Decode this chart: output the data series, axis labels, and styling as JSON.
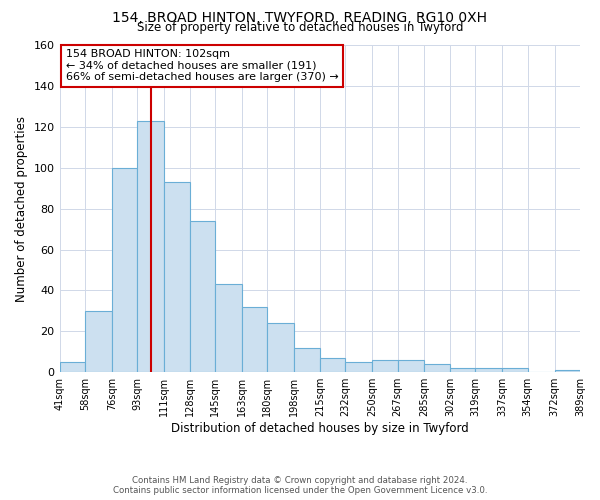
{
  "title": "154, BROAD HINTON, TWYFORD, READING, RG10 0XH",
  "subtitle": "Size of property relative to detached houses in Twyford",
  "xlabel": "Distribution of detached houses by size in Twyford",
  "ylabel": "Number of detached properties",
  "bar_edges": [
    41,
    58,
    76,
    93,
    111,
    128,
    145,
    163,
    180,
    198,
    215,
    232,
    250,
    267,
    285,
    302,
    319,
    337,
    354,
    372,
    389
  ],
  "bar_heights": [
    5,
    30,
    100,
    123,
    93,
    74,
    43,
    32,
    24,
    12,
    7,
    5,
    6,
    6,
    4,
    2,
    2,
    2,
    0,
    1
  ],
  "tick_labels": [
    "41sqm",
    "58sqm",
    "76sqm",
    "93sqm",
    "111sqm",
    "128sqm",
    "145sqm",
    "163sqm",
    "180sqm",
    "198sqm",
    "215sqm",
    "232sqm",
    "250sqm",
    "267sqm",
    "285sqm",
    "302sqm",
    "319sqm",
    "337sqm",
    "354sqm",
    "372sqm",
    "389sqm"
  ],
  "bar_color": "#cce0f0",
  "bar_edge_color": "#6aaed6",
  "reference_line_x": 102,
  "reference_line_color": "#cc0000",
  "ylim": [
    0,
    160
  ],
  "yticks": [
    0,
    20,
    40,
    60,
    80,
    100,
    120,
    140,
    160
  ],
  "annotation_title": "154 BROAD HINTON: 102sqm",
  "annotation_line1": "← 34% of detached houses are smaller (191)",
  "annotation_line2": "66% of semi-detached houses are larger (370) →",
  "annotation_box_color": "#ffffff",
  "annotation_box_edge_color": "#cc0000",
  "footer_line1": "Contains HM Land Registry data © Crown copyright and database right 2024.",
  "footer_line2": "Contains public sector information licensed under the Open Government Licence v3.0.",
  "background_color": "#ffffff",
  "grid_color": "#d0d8e8"
}
